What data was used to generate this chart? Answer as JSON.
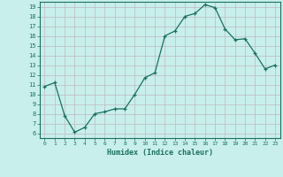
{
  "x": [
    0,
    1,
    2,
    3,
    4,
    5,
    6,
    7,
    8,
    9,
    10,
    11,
    12,
    13,
    14,
    15,
    16,
    17,
    18,
    19,
    20,
    21,
    22,
    23
  ],
  "y": [
    10.8,
    11.2,
    7.8,
    6.1,
    6.6,
    8.0,
    8.2,
    8.5,
    8.5,
    10.0,
    11.7,
    12.2,
    16.0,
    16.5,
    18.0,
    18.3,
    19.2,
    18.9,
    16.7,
    15.6,
    15.7,
    14.2,
    12.6,
    13.0
  ],
  "xlabel": "Humidex (Indice chaleur)",
  "xlim": [
    -0.5,
    23.5
  ],
  "ylim": [
    5.5,
    19.5
  ],
  "yticks": [
    6,
    7,
    8,
    9,
    10,
    11,
    12,
    13,
    14,
    15,
    16,
    17,
    18,
    19
  ],
  "xticks": [
    0,
    1,
    2,
    3,
    4,
    5,
    6,
    7,
    8,
    9,
    10,
    11,
    12,
    13,
    14,
    15,
    16,
    17,
    18,
    19,
    20,
    21,
    22,
    23
  ],
  "line_color": "#1a7060",
  "marker_color": "#1a7060",
  "bg_color": "#c8efec",
  "grid_color": "#c0b8c0",
  "axis_color": "#1a7060",
  "label_color": "#1a7060",
  "tick_color": "#1a7060"
}
